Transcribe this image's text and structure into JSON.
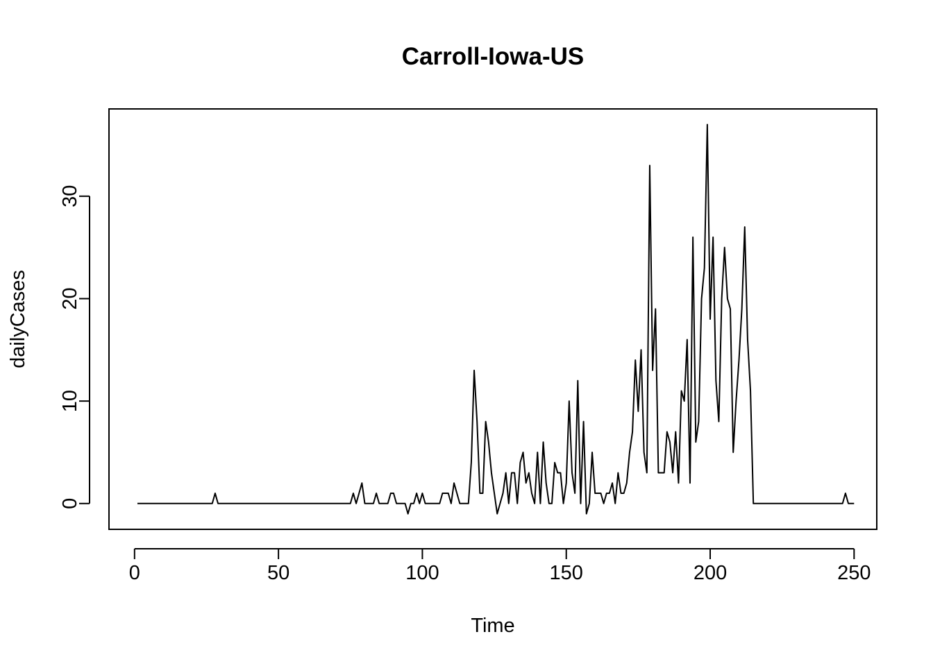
{
  "chart_data": {
    "type": "line",
    "title": "Carroll-Iowa-US",
    "xlabel": "Time",
    "ylabel": "dailyCases",
    "xlim": [
      -8.88,
      257.88
    ],
    "ylim": [
      -2.52,
      38.52
    ],
    "x_ticks": [
      0,
      50,
      100,
      150,
      200,
      250
    ],
    "y_ticks": [
      0,
      10,
      20,
      30
    ],
    "grid": false,
    "legend": "none",
    "line_color": "#000000",
    "x_start": 1,
    "values": [
      0,
      0,
      0,
      0,
      0,
      0,
      0,
      0,
      0,
      0,
      0,
      0,
      0,
      0,
      0,
      0,
      0,
      0,
      0,
      0,
      0,
      0,
      0,
      0,
      0,
      0,
      0,
      1,
      0,
      0,
      0,
      0,
      0,
      0,
      0,
      0,
      0,
      0,
      0,
      0,
      0,
      0,
      0,
      0,
      0,
      0,
      0,
      0,
      0,
      0,
      0,
      0,
      0,
      0,
      0,
      0,
      0,
      0,
      0,
      0,
      0,
      0,
      0,
      0,
      0,
      0,
      0,
      0,
      0,
      0,
      0,
      0,
      0,
      0,
      0,
      1,
      0,
      1,
      2,
      0,
      0,
      0,
      0,
      1,
      0,
      0,
      0,
      0,
      1,
      1,
      0,
      0,
      0,
      0,
      -1,
      0,
      0,
      1,
      0,
      1,
      0,
      0,
      0,
      0,
      0,
      0,
      1,
      1,
      1,
      0,
      2,
      1,
      0,
      0,
      0,
      0,
      4,
      13,
      8,
      1,
      1,
      8,
      6,
      3,
      1,
      -1,
      0,
      1,
      3,
      0,
      3,
      3,
      0,
      4,
      5,
      2,
      3,
      1,
      0,
      5,
      0,
      6,
      2,
      0,
      0,
      4,
      3,
      3,
      0,
      2,
      10,
      3,
      1,
      12,
      0,
      8,
      -1,
      0,
      5,
      1,
      1,
      1,
      0,
      1,
      1,
      2,
      0,
      3,
      1,
      1,
      2,
      5,
      7,
      14,
      9,
      15,
      5,
      3,
      33,
      13,
      19,
      3,
      3,
      3,
      7,
      6,
      3,
      7,
      2,
      11,
      10,
      16,
      2,
      26,
      6,
      8,
      20,
      23,
      37,
      18,
      26,
      12,
      8,
      20,
      25,
      20,
      19,
      5,
      10,
      14,
      19,
      27,
      16,
      11,
      0,
      0,
      0,
      0,
      0,
      0,
      0,
      0,
      0,
      0,
      0,
      0,
      0,
      0,
      0,
      0,
      0,
      0,
      0,
      0,
      0,
      0,
      0,
      0,
      0,
      0,
      0,
      0,
      0,
      0,
      0,
      0,
      1,
      0,
      0,
      0
    ]
  }
}
